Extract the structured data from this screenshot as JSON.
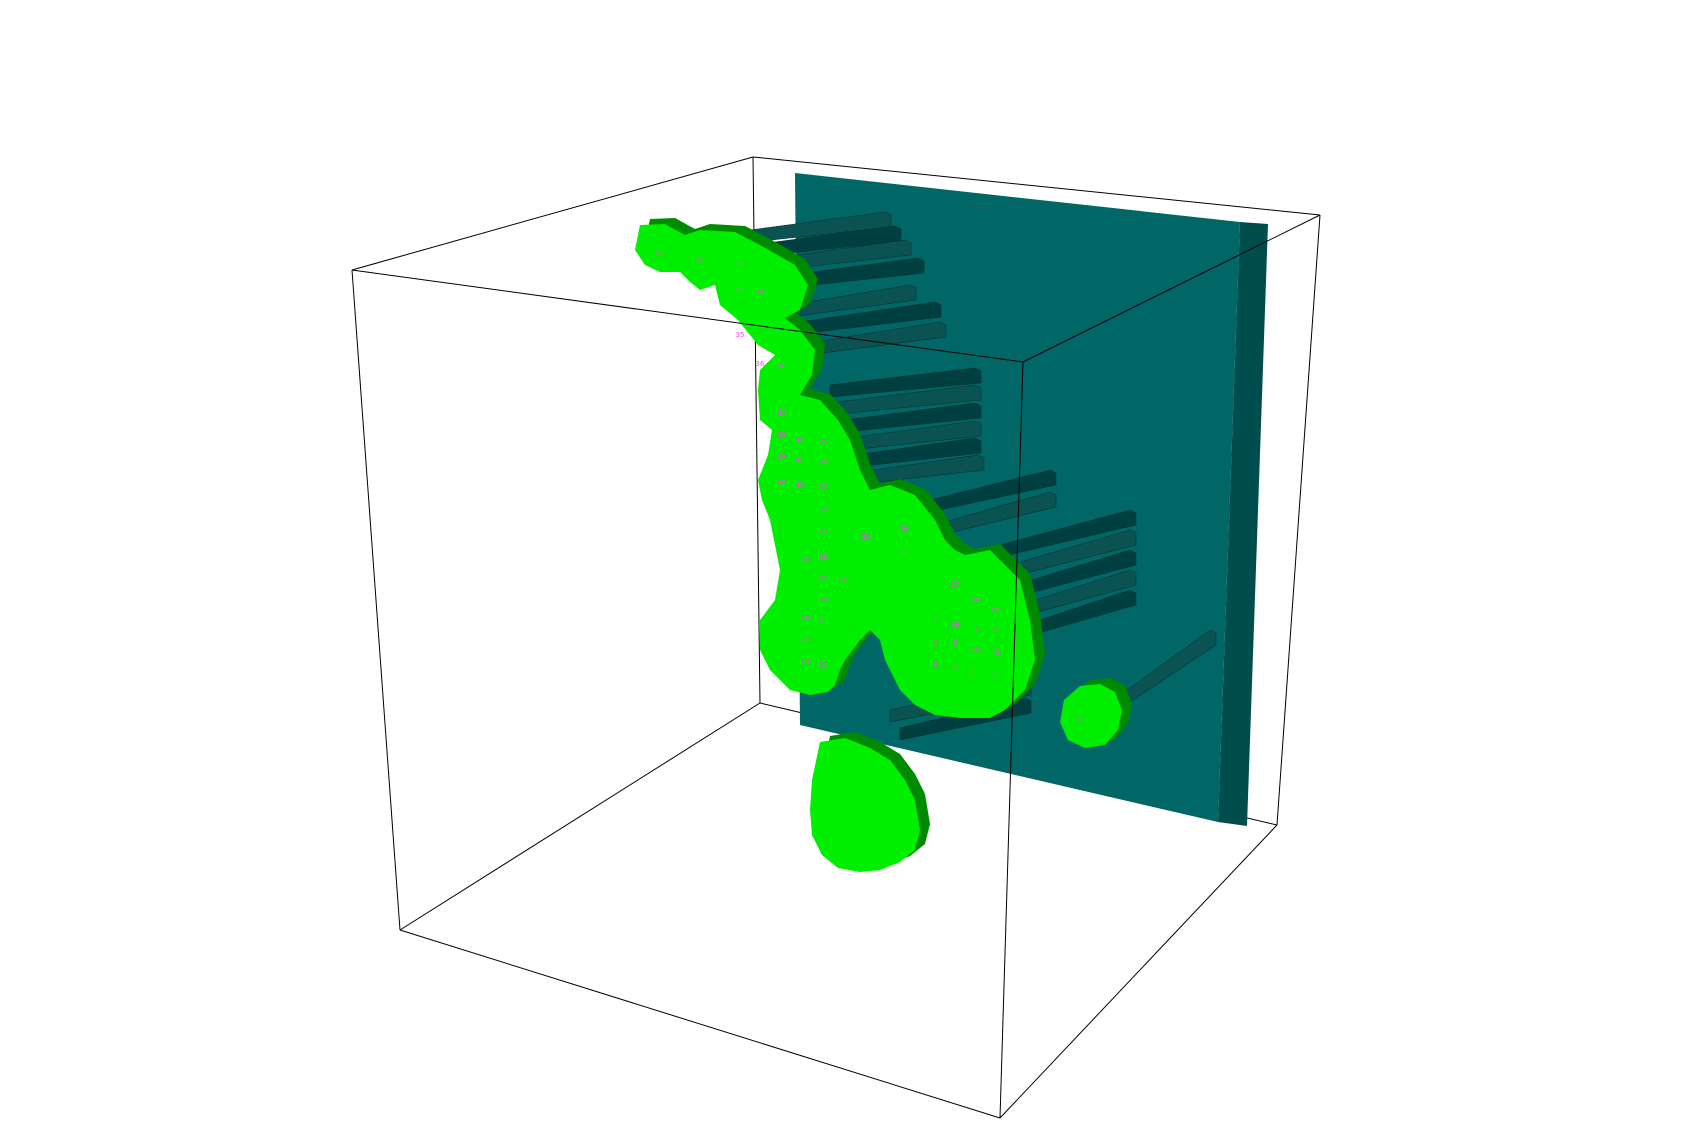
{
  "scene": {
    "colors": {
      "background": "#ffffff",
      "box_edge": "#000000",
      "plate_front": "#006666",
      "plate_side": "#004d4d",
      "rod": "#003f3f",
      "rod_light": "#0b5252",
      "blob": "#00ee00",
      "blob_shadow": "#008a00",
      "label": "#ff44ff"
    },
    "labels": [
      "55",
      "30",
      "15",
      "33",
      "34",
      "35",
      "36",
      "24",
      "37",
      "28",
      "46",
      "25",
      "47",
      "40",
      "26",
      "44",
      "45",
      "27",
      "32",
      "12",
      "23",
      "29",
      "31",
      "18",
      "13",
      "42",
      "21",
      "20",
      "41",
      "14",
      "22",
      "11",
      "19",
      "17",
      "48",
      "16",
      "7",
      "39",
      "3",
      "6",
      "2",
      "8",
      "10",
      "43",
      "9",
      "5",
      "1",
      "4",
      "0"
    ]
  }
}
